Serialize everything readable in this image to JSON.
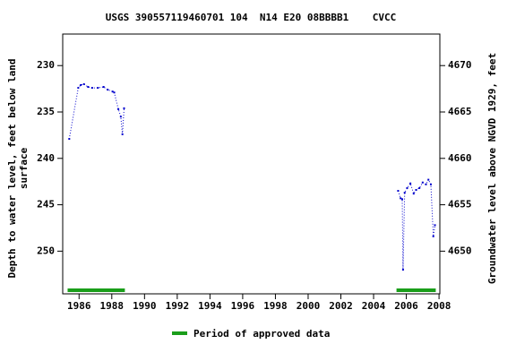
{
  "chart_data": {
    "type": "line",
    "title": "USGS 390557119460701 104  N14 E20 08BBBB1    CVCC",
    "y_label": [
      "Depth to water level, feet below land",
      "surface"
    ],
    "y2_label": "Groundwater level above NGVD 1929, feet",
    "xlim": [
      1985,
      2008.05
    ],
    "xticks": [
      1986,
      1988,
      1990,
      1992,
      1994,
      1996,
      1998,
      2000,
      2002,
      2004,
      2006,
      2008
    ],
    "ylim": [
      226.6,
      254.6
    ],
    "y_inverted": true,
    "yticks": [
      230,
      235,
      240,
      245,
      250
    ],
    "y2lim": [
      4673.4,
      4645.4
    ],
    "y2ticks": [
      4650,
      4655,
      4660,
      4665,
      4670
    ],
    "series": [
      {
        "color": "#0000cc",
        "x": [
          1985.4,
          1985.95,
          1986.1,
          1986.3,
          1986.55,
          1986.8,
          1987.15,
          1987.5,
          1987.75,
          1988.05,
          1988.15,
          1988.4,
          1988.55,
          1988.65,
          1988.75
        ],
        "values": [
          237.9,
          232.4,
          232.1,
          232.0,
          232.3,
          232.4,
          232.4,
          232.3,
          232.6,
          232.8,
          232.9,
          234.7,
          235.5,
          237.4,
          234.6
        ]
      },
      {
        "color": "#0000cc",
        "x": [
          2005.5,
          2005.65,
          2005.75,
          2005.8,
          2005.9,
          2006.05,
          2006.25,
          2006.45,
          2006.6,
          2006.8,
          2007.0,
          2007.2,
          2007.35,
          2007.5,
          2007.65,
          2007.75
        ],
        "values": [
          243.5,
          244.3,
          244.4,
          252.0,
          243.7,
          243.2,
          242.7,
          243.8,
          243.4,
          243.2,
          242.6,
          242.8,
          242.3,
          242.8,
          248.4,
          247.2
        ]
      }
    ],
    "approved_periods": [
      [
        1985.3,
        1988.8
      ],
      [
        2005.4,
        2007.8
      ]
    ],
    "approved_color": "#1a9e1a",
    "legend": "Period of approved data"
  }
}
